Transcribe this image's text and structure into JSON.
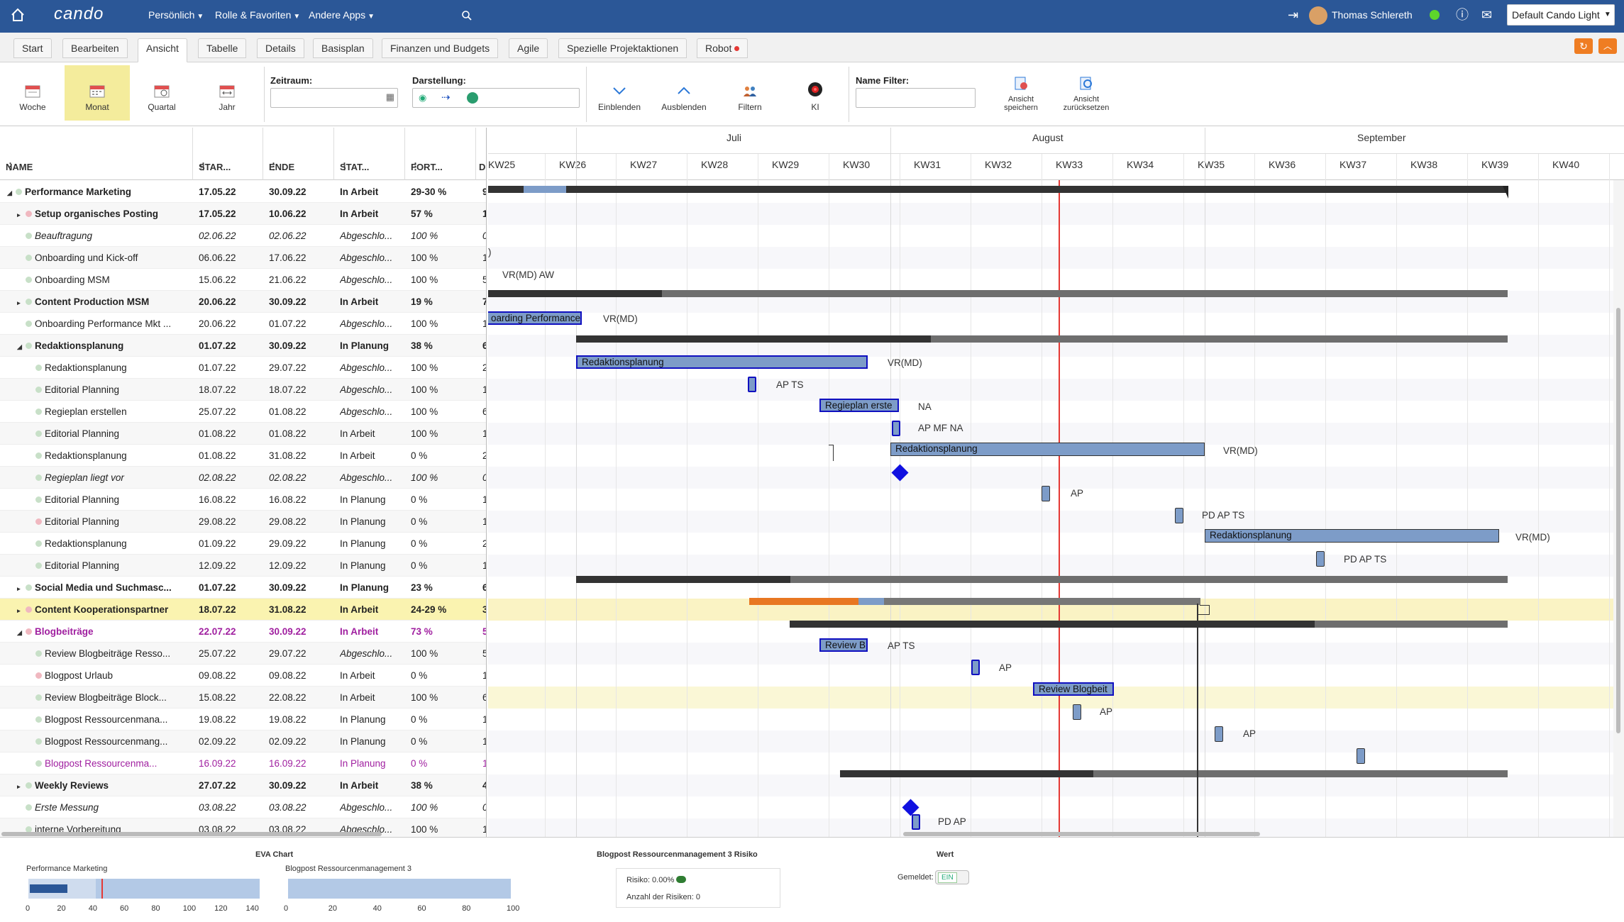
{
  "app": {
    "logo": "cando",
    "menus": [
      "Persönlich",
      "Rolle & Favoriten",
      "Andere Apps"
    ],
    "user": "Thomas Schlereth",
    "theme": "Default Cando Light",
    "accent": "#2b5797"
  },
  "tabs": [
    "Start",
    "Bearbeiten",
    "Ansicht",
    "Tabelle",
    "Details",
    "Basisplan",
    "Finanzen und Budgets",
    "Agile",
    "Spezielle Projektaktionen",
    "Robot"
  ],
  "active_tab": "Ansicht",
  "ribbon": {
    "woche": "Woche",
    "monat": "Monat",
    "quartal": "Quartal",
    "jahr": "Jahr",
    "zeitraum_label": "Zeitraum:",
    "darstellung_label": "Darstellung:",
    "einblenden": "Einblenden",
    "ausblenden": "Ausblenden",
    "filtern": "Filtern",
    "ki": "KI",
    "name_filter_label": "Name Filter:",
    "ansicht_speichern": [
      "Ansicht",
      "speichern"
    ],
    "ansicht_zuruecksetzen": [
      "Ansicht",
      "zurücksetzen"
    ]
  },
  "columns": {
    "name": "NAME",
    "start": "STAR...",
    "end": "ENDE",
    "status": "STAT...",
    "progress": "FORT...",
    "d": "D"
  },
  "rows": [
    {
      "name": "Performance Marketing",
      "start": "17.05.22",
      "end": "30.09.22",
      "status": "In Arbeit",
      "progress": "29-30 %",
      "d": "9",
      "level": 0,
      "bold": true,
      "dot": "#c8e0c8",
      "tri": "◢"
    },
    {
      "name": "Setup organisches Posting",
      "start": "17.05.22",
      "end": "10.06.22",
      "status": "In Arbeit",
      "progress": "57 %",
      "d": "1",
      "level": 1,
      "bold": true,
      "dot": "#f0b8c0",
      "tri": "▸"
    },
    {
      "name": "Beauftragung",
      "start": "02.06.22",
      "end": "02.06.22",
      "status": "Abgeschlo...",
      "progress": "100 %",
      "d": "0",
      "level": 1,
      "italic": true,
      "dot": "#c8e0c8"
    },
    {
      "name": "Onboarding und Kick-off",
      "start": "06.06.22",
      "end": "17.06.22",
      "status": "Abgeschlo...",
      "progress": "100 %",
      "d": "1",
      "level": 1,
      "dot": "#c8e0c8"
    },
    {
      "name": "Onboarding MSM",
      "start": "15.06.22",
      "end": "21.06.22",
      "status": "Abgeschlo...",
      "progress": "100 %",
      "d": "5",
      "level": 1,
      "dot": "#c8e0c8"
    },
    {
      "name": "Content Production MSM",
      "start": "20.06.22",
      "end": "30.09.22",
      "status": "In Arbeit",
      "progress": "19 %",
      "d": "7",
      "level": 1,
      "bold": true,
      "dot": "#c8e0c8",
      "tri": "▸"
    },
    {
      "name": "Onboarding Performance Mkt ...",
      "start": "20.06.22",
      "end": "01.07.22",
      "status": "Abgeschlo...",
      "progress": "100 %",
      "d": "1",
      "level": 1,
      "dot": "#c8e0c8"
    },
    {
      "name": "Redaktionsplanung",
      "start": "01.07.22",
      "end": "30.09.22",
      "status": "In Planung",
      "progress": "38 %",
      "d": "6",
      "level": 1,
      "bold": true,
      "dot": "#c8e0c8",
      "tri": "◢"
    },
    {
      "name": "Redaktionsplanung",
      "start": "01.07.22",
      "end": "29.07.22",
      "status": "Abgeschlo...",
      "progress": "100 %",
      "d": "2",
      "level": 2,
      "dot": "#c8e0c8"
    },
    {
      "name": "Editorial Planning",
      "start": "18.07.22",
      "end": "18.07.22",
      "status": "Abgeschlo...",
      "progress": "100 %",
      "d": "1",
      "level": 2,
      "dot": "#c8e0c8"
    },
    {
      "name": "Regieplan erstellen",
      "start": "25.07.22",
      "end": "01.08.22",
      "status": "Abgeschlo...",
      "progress": "100 %",
      "d": "6",
      "level": 2,
      "dot": "#c8e0c8"
    },
    {
      "name": "Editorial Planning",
      "start": "01.08.22",
      "end": "01.08.22",
      "status": "In Arbeit",
      "progress": "100 %",
      "d": "1",
      "level": 2,
      "dot": "#c8e0c8"
    },
    {
      "name": "Redaktionsplanung",
      "start": "01.08.22",
      "end": "31.08.22",
      "status": "In Arbeit",
      "progress": "0 %",
      "d": "2",
      "level": 2,
      "dot": "#c8e0c8"
    },
    {
      "name": "Regieplan liegt vor",
      "start": "02.08.22",
      "end": "02.08.22",
      "status": "Abgeschlo...",
      "progress": "100 %",
      "d": "0",
      "level": 2,
      "italic": true,
      "dot": "#c8e0c8"
    },
    {
      "name": "Editorial Planning",
      "start": "16.08.22",
      "end": "16.08.22",
      "status": "In Planung",
      "progress": "0 %",
      "d": "1",
      "level": 2,
      "dot": "#c8e0c8"
    },
    {
      "name": "Editorial Planning",
      "start": "29.08.22",
      "end": "29.08.22",
      "status": "In Planung",
      "progress": "0 %",
      "d": "1",
      "level": 2,
      "dot": "#f0b8c0"
    },
    {
      "name": "Redaktionsplanung",
      "start": "01.09.22",
      "end": "29.09.22",
      "status": "In Planung",
      "progress": "0 %",
      "d": "2",
      "level": 2,
      "dot": "#c8e0c8"
    },
    {
      "name": "Editorial Planning",
      "start": "12.09.22",
      "end": "12.09.22",
      "status": "In Planung",
      "progress": "0 %",
      "d": "1",
      "level": 2,
      "dot": "#c8e0c8"
    },
    {
      "name": "Social Media und Suchmasc...",
      "start": "01.07.22",
      "end": "30.09.22",
      "status": "In Planung",
      "progress": "23 %",
      "d": "6",
      "level": 1,
      "bold": true,
      "dot": "#c8e0c8",
      "tri": "▸"
    },
    {
      "name": "Content Kooperationspartner",
      "start": "18.07.22",
      "end": "31.08.22",
      "status": "In Arbeit",
      "progress": "24-29 %",
      "d": "3",
      "level": 1,
      "bold": true,
      "dot": "#f0b8c0",
      "tri": "▸",
      "highlight": true
    },
    {
      "name": "Blogbeiträge",
      "start": "22.07.22",
      "end": "30.09.22",
      "status": "In Arbeit",
      "progress": "73 %",
      "d": "5",
      "level": 1,
      "bold": true,
      "dot": "#f0b8c0",
      "tri": "◢",
      "purple": true
    },
    {
      "name": "Review Blogbeiträge Resso...",
      "start": "25.07.22",
      "end": "29.07.22",
      "status": "Abgeschlo...",
      "progress": "100 %",
      "d": "5",
      "level": 2,
      "dot": "#c8e0c8"
    },
    {
      "name": "Blogpost Urlaub",
      "start": "09.08.22",
      "end": "09.08.22",
      "status": "In Arbeit",
      "progress": "0 %",
      "d": "1",
      "level": 2,
      "dot": "#f0b8c0"
    },
    {
      "name": "Review Blogbeiträge Block...",
      "start": "15.08.22",
      "end": "22.08.22",
      "status": "In Arbeit",
      "progress": "100 %",
      "d": "6",
      "level": 2,
      "dot": "#c8e0c8"
    },
    {
      "name": "Blogpost Ressourcenmana...",
      "start": "19.08.22",
      "end": "19.08.22",
      "status": "In Planung",
      "progress": "0 %",
      "d": "1",
      "level": 2,
      "dot": "#c8e0c8"
    },
    {
      "name": "Blogpost Ressourcenmang...",
      "start": "02.09.22",
      "end": "02.09.22",
      "status": "In Planung",
      "progress": "0 %",
      "d": "1",
      "level": 2,
      "dot": "#c8e0c8"
    },
    {
      "name": "Blogpost Ressourcenma...",
      "start": "16.09.22",
      "end": "16.09.22",
      "status": "In Planung",
      "progress": "0 %",
      "d": "1",
      "level": 2,
      "dot": "#c8e0c8",
      "purple": true
    },
    {
      "name": "Weekly Reviews",
      "start": "27.07.22",
      "end": "30.09.22",
      "status": "In Arbeit",
      "progress": "38 %",
      "d": "4",
      "level": 1,
      "bold": true,
      "dot": "#c8e0c8",
      "tri": "▸"
    },
    {
      "name": "Erste Messung",
      "start": "03.08.22",
      "end": "03.08.22",
      "status": "Abgeschlo...",
      "progress": "100 %",
      "d": "0",
      "level": 1,
      "italic": true,
      "dot": "#c8e0c8"
    },
    {
      "name": "interne Vorbereitung",
      "start": "03.08.22",
      "end": "03.08.22",
      "status": "Abgeschlo...",
      "progress": "100 %",
      "d": "1",
      "level": 1,
      "dot": "#c8e0c8"
    }
  ],
  "timeline": {
    "months": [
      "Juli",
      "August",
      "September"
    ],
    "weeks": [
      "KW25",
      "KW26",
      "KW27",
      "KW28",
      "KW29",
      "KW30",
      "KW31",
      "KW32",
      "KW33",
      "KW34",
      "KW35",
      "KW36",
      "KW37",
      "KW38",
      "KW39",
      "KW40"
    ]
  },
  "gantt_labels": {
    "r4": "VR(MD)   AW",
    "r6_bar": "oarding Performance",
    "r6": "VR(MD)",
    "r8_bar": "Redaktionsplanung",
    "r8": "VR(MD)",
    "r9": "AP   TS",
    "r10_bar": "Regieplan erste",
    "r10": "NA",
    "r11": "AP   MF   NA",
    "r12_bar": "Redaktionsplanung",
    "r12": "VR(MD)",
    "r14": "AP",
    "r15": "PD   AP   TS",
    "r16_bar": "Redaktionsplanung",
    "r16": "VR(MD)",
    "r17": "PD   AP   TS",
    "r21_bar": "Review B",
    "r21": "AP   TS",
    "r22": "AP",
    "r23_bar": "Review Blogbeit",
    "r24": "AP",
    "r25": "AP",
    "r29": "PD   AP"
  },
  "bottom": {
    "eva_title": "EVA Chart",
    "chart1_label": "Performance Marketing",
    "chart1_ticks": [
      "0",
      "20",
      "40",
      "60",
      "80",
      "100",
      "120",
      "140"
    ],
    "chart2_label": "Blogpost Ressourcenmanagement 3",
    "chart2_ticks": [
      "0",
      "20",
      "40",
      "60",
      "80",
      "100"
    ],
    "risk_title": "Blogpost Ressourcenmanagement 3 Risiko",
    "risk_text": "Risiko: 0.00%",
    "risk_count": "Anzahl der Risiken: 0",
    "wert_title": "Wert",
    "gemeldet": "Gemeldet:",
    "toggle": "EIN"
  }
}
